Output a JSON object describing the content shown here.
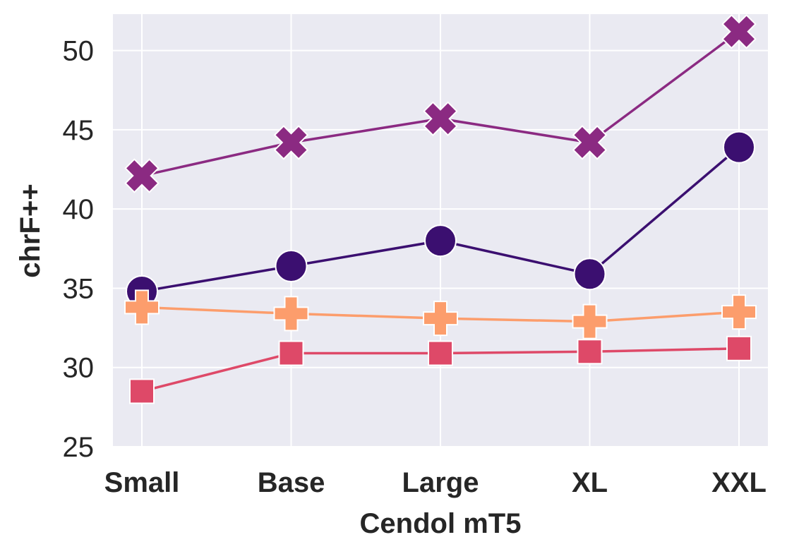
{
  "chart_data": {
    "type": "line",
    "xlabel": "Cendol mT5",
    "ylabel": "chrF++",
    "categories": [
      "Small",
      "Base",
      "Large",
      "XL",
      "XXL"
    ],
    "ylim": [
      25,
      52.3
    ],
    "yticks": [
      25,
      30,
      35,
      40,
      45,
      50
    ],
    "grid": true,
    "legend": "none",
    "series": [
      {
        "marker": "x",
        "color": "#8b2a82",
        "values": [
          42.1,
          44.2,
          45.7,
          44.2,
          51.2
        ]
      },
      {
        "marker": "circle",
        "color": "#3b0f70",
        "values": [
          34.8,
          36.4,
          38.0,
          35.9,
          43.9
        ]
      },
      {
        "marker": "plus",
        "color": "#fc9d6c",
        "values": [
          33.8,
          33.4,
          33.1,
          32.9,
          33.5
        ]
      },
      {
        "marker": "square",
        "color": "#de4968",
        "values": [
          28.5,
          30.9,
          30.9,
          31.0,
          31.2
        ]
      }
    ]
  }
}
